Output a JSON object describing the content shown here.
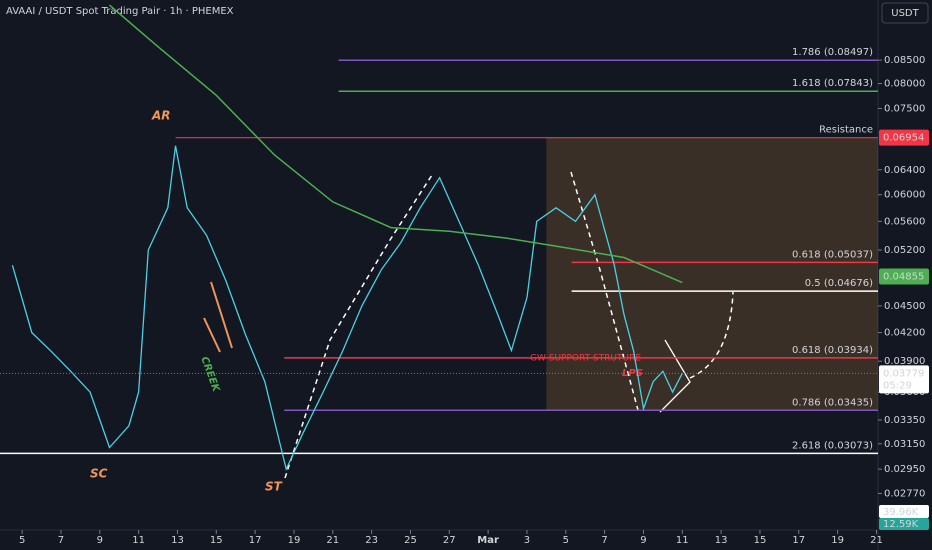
{
  "chart_data": {
    "type": "line",
    "title": "AVAAI / USDT Spot Trading Pair · 1h · PHEMEX",
    "currency": "USDT",
    "log_scale": true,
    "xlim": [
      -1.14,
      44.08
    ],
    "ylim": [
      0.0252,
      0.0993
    ],
    "xticks": [
      {
        "value": 0,
        "label": "5"
      },
      {
        "value": 2,
        "label": "7"
      },
      {
        "value": 4,
        "label": "9"
      },
      {
        "value": 6,
        "label": "11"
      },
      {
        "value": 8,
        "label": "13"
      },
      {
        "value": 10,
        "label": "15"
      },
      {
        "value": 12,
        "label": "17"
      },
      {
        "value": 14,
        "label": "19"
      },
      {
        "value": 16,
        "label": "21"
      },
      {
        "value": 18,
        "label": "23"
      },
      {
        "value": 20,
        "label": "25"
      },
      {
        "value": 22,
        "label": "27"
      },
      {
        "value": 24,
        "label": "Mar"
      },
      {
        "value": 26,
        "label": "3"
      },
      {
        "value": 28,
        "label": "5"
      },
      {
        "value": 30,
        "label": "7"
      },
      {
        "value": 32,
        "label": "9"
      },
      {
        "value": 34,
        "label": "11"
      },
      {
        "value": 36,
        "label": "13"
      },
      {
        "value": 38,
        "label": "15"
      },
      {
        "value": 40,
        "label": "17"
      },
      {
        "value": 42,
        "label": "19"
      },
      {
        "value": 44,
        "label": "21"
      }
    ],
    "yticks": [
      {
        "value": 0.085,
        "label": "0.08500"
      },
      {
        "value": 0.08,
        "label": "0.08000"
      },
      {
        "value": 0.075,
        "label": "0.07500"
      },
      {
        "value": 0.064,
        "label": "0.06400"
      },
      {
        "value": 0.06,
        "label": "0.06000"
      },
      {
        "value": 0.056,
        "label": "0.05600"
      },
      {
        "value": 0.052,
        "label": "0.05200"
      },
      {
        "value": 0.045,
        "label": "0.04500"
      },
      {
        "value": 0.042,
        "label": "0.04200"
      },
      {
        "value": 0.039,
        "label": "0.03900"
      },
      {
        "value": 0.036,
        "label": "0.03600"
      },
      {
        "value": 0.0335,
        "label": "0.03350"
      },
      {
        "value": 0.0315,
        "label": "0.03150"
      },
      {
        "value": 0.0295,
        "label": "0.02950"
      },
      {
        "value": 0.0277,
        "label": "0.02770"
      }
    ],
    "series": [
      {
        "color": "#4dd0e1",
        "x": [
          -0.5,
          0.5,
          1.5,
          2.5,
          3.5,
          4.5,
          5.5,
          6.0,
          6.5,
          7.5,
          7.9,
          8.5,
          9.5,
          10.5,
          11.5,
          12.5,
          13.6,
          14.5,
          15.5,
          16.5,
          17.5,
          18.5,
          19.5,
          20.5,
          21.5,
          22.5,
          23.5,
          24.5,
          25.2,
          26,
          26.5,
          27.5,
          28.5,
          29.5,
          30.5,
          31,
          31.5,
          32,
          32.5,
          33,
          33.5,
          34
        ],
        "values": [
          0.05,
          0.042,
          0.04,
          0.038,
          0.036,
          0.0312,
          0.033,
          0.036,
          0.052,
          0.058,
          0.0681,
          0.058,
          0.054,
          0.048,
          0.0418,
          0.037,
          0.0295,
          0.0325,
          0.036,
          0.04,
          0.045,
          0.0494,
          0.053,
          0.058,
          0.0627,
          0.056,
          0.05,
          0.044,
          0.0401,
          0.046,
          0.056,
          0.058,
          0.056,
          0.06,
          0.05,
          0.044,
          0.04,
          0.0345,
          0.037,
          0.038,
          0.036,
          0.0378
        ]
      },
      {
        "color": "#4caf50",
        "x": [
          4.5,
          7,
          10,
          13,
          16,
          19,
          22,
          25,
          28,
          31,
          34
        ],
        "values": [
          0.098,
          0.088,
          0.0776,
          0.0665,
          0.0589,
          0.0551,
          0.0546,
          0.0536,
          0.0523,
          0.051,
          0.0478
        ]
      }
    ],
    "levels": [
      {
        "value": 0.08497,
        "label": "1.786 (0.08497)",
        "color": "#7e57c2",
        "from": 16.3
      },
      {
        "value": 0.07843,
        "label": "1.618 (0.07843)",
        "color": "#4caf50",
        "from": 16.3
      },
      {
        "value": 0.05037,
        "label": "0.618 (0.05037)",
        "color": "#f23645",
        "from": 28.3
      },
      {
        "value": 0.04676,
        "label": "0.5 (0.04676)",
        "color": "#ffffff",
        "from": 28.3
      },
      {
        "value": 0.03934,
        "label": "0.618 (0.03934)",
        "color": "#f23645",
        "from": 13.5
      },
      {
        "value": 0.03435,
        "label": "0.786 (0.03435)",
        "color": "#7e57c2",
        "from": 13.5
      },
      {
        "value": 0.03073,
        "label": "2.618 (0.03073)",
        "color": "#ffffff",
        "from": -1.14
      }
    ],
    "resistance": {
      "value": 0.06954,
      "label": "Resistance",
      "price_label": "0.06954",
      "from": 7.9
    },
    "zone_from": 27,
    "last_price": {
      "value": 0.03779,
      "label": "0.03779"
    },
    "countdown": "05:29",
    "ma_last": {
      "value": 0.04855,
      "label": "0.04855"
    },
    "volume_labels": [
      "39.96K",
      "12.59K"
    ],
    "annotations": [
      "AR",
      "SC",
      "ST",
      "CREEK",
      "GW SUPPORT STRUTURE",
      "LPS"
    ]
  }
}
